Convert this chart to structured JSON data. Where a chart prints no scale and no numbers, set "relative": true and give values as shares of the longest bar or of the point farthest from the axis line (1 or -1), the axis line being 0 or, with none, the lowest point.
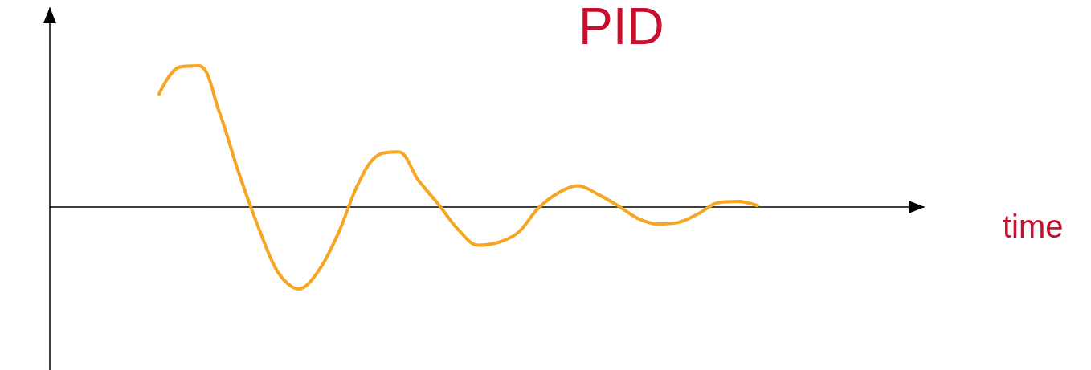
{
  "chart_data": {
    "type": "line",
    "title": "PID",
    "annotations": [
      "time"
    ],
    "relative": true,
    "categories": [
      null,
      null,
      null,
      null,
      null,
      null,
      null,
      null,
      null,
      null,
      null,
      null,
      null,
      null,
      null,
      null,
      null,
      null,
      null,
      null,
      null,
      null,
      null,
      null,
      null,
      null,
      null,
      null,
      null,
      null,
      null
    ],
    "series": [
      {
        "color": "#f5a623",
        "values": [
          0.8,
          0.99,
          1,
          0.68,
          0.24,
          -0.15,
          -0.47,
          -0.58,
          -0.45,
          -0.18,
          0.17,
          0.37,
          0.39,
          0.19,
          0.02,
          -0.16,
          -0.27,
          -0.25,
          -0.18,
          -0.01,
          0.1,
          0.15,
          0.09,
          0.01,
          -0.08,
          -0.12,
          -0.11,
          -0.05,
          0.03,
          0.04,
          0.01
        ]
      }
    ]
  }
}
